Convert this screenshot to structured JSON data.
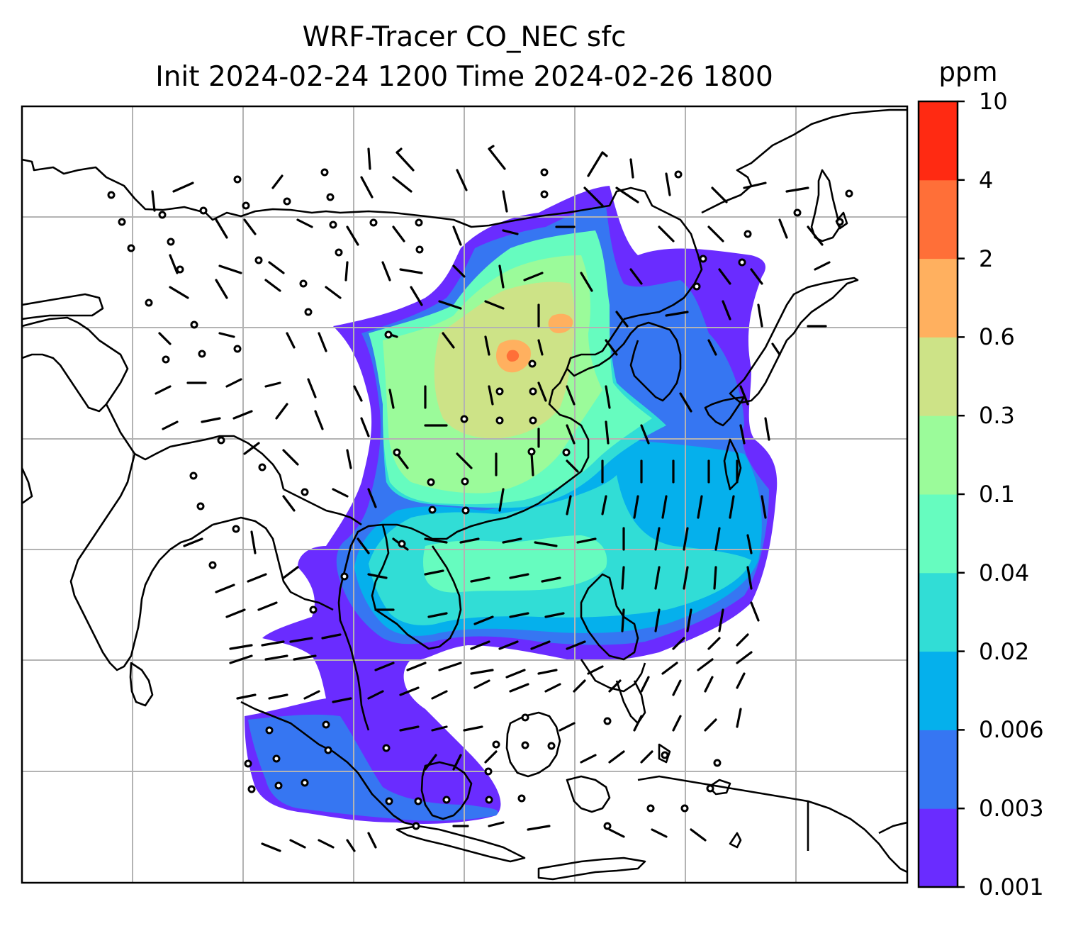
{
  "title": "WRF-Tracer CO_NEC sfc",
  "subtitle": "Init 2024-02-24 1200 Time 2024-02-26 1800",
  "colorbar": {
    "unit": "ppm",
    "levels": [
      "0.001",
      "0.003",
      "0.006",
      "0.02",
      "0.04",
      "0.1",
      "0.3",
      "0.6",
      "2",
      "4",
      "10"
    ],
    "colors": [
      "#6a2cff",
      "#3676f2",
      "#05b0ec",
      "#31ddd6",
      "#66fcbf",
      "#9bfb9a",
      "#cde387",
      "#ffb05f",
      "#ff6f38",
      "#ff2a12"
    ]
  },
  "map": {
    "gridlines": true,
    "wind_barbs": true,
    "calm_marker": "circle"
  }
}
